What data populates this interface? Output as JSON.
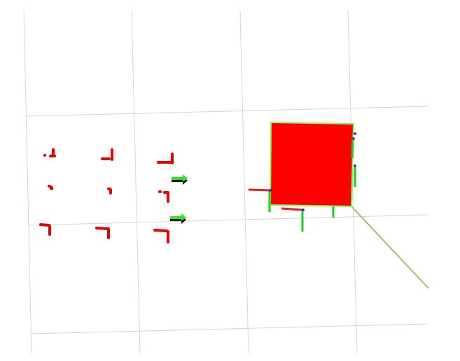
{
  "viewport": {
    "background": "#ffffff",
    "colors": {
      "grid": "#d4d4d4",
      "obstacle_fill": "#ff0000",
      "obstacle_outline": "#7cff5a",
      "point_cloud": "#e60000",
      "axis_x": "#e02020",
      "axis_y": "#18d018",
      "axis_z": "#1020e0",
      "pose_arrow": "#22ee22",
      "pose_arrow_shadow": "#000000",
      "path_line": "#b4b46e"
    }
  }
}
